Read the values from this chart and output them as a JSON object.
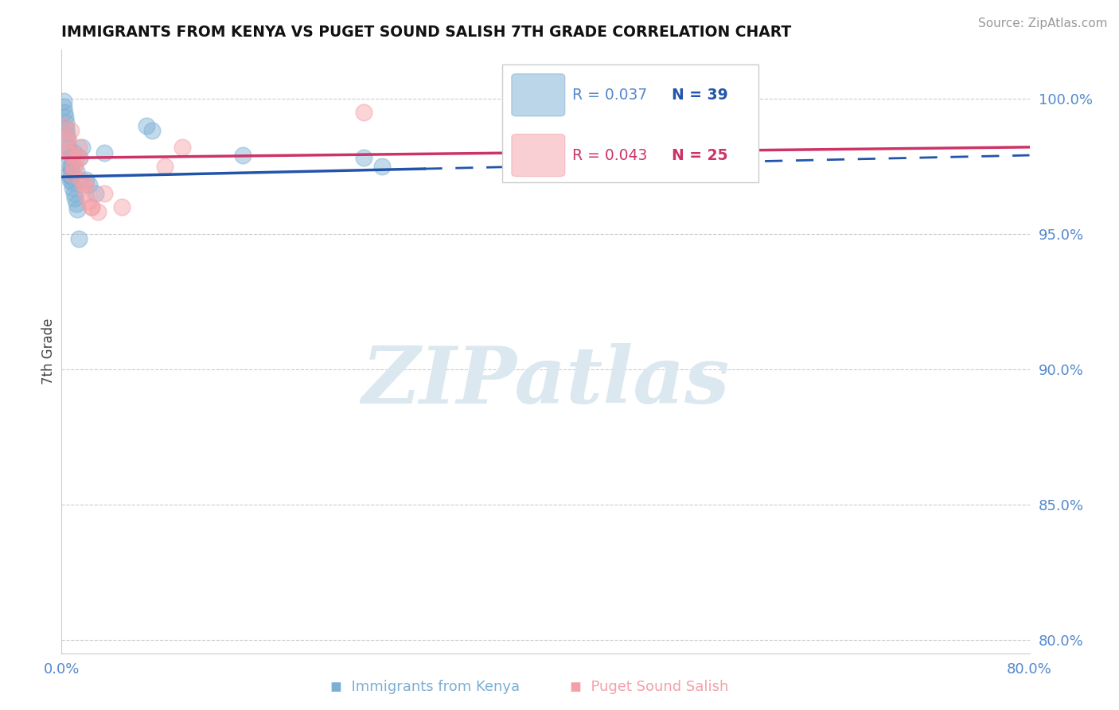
{
  "title": "IMMIGRANTS FROM KENYA VS PUGET SOUND SALISH 7TH GRADE CORRELATION CHART",
  "source": "Source: ZipAtlas.com",
  "ylabel": "7th Grade",
  "xlim": [
    0.0,
    80.0
  ],
  "ylim": [
    79.5,
    101.8
  ],
  "yticks": [
    80.0,
    85.0,
    90.0,
    95.0,
    100.0
  ],
  "ytick_labels": [
    "80.0%",
    "85.0%",
    "90.0%",
    "95.0%",
    "100.0%"
  ],
  "legend_R_kenya": "R = 0.037",
  "legend_N_kenya": "N = 39",
  "legend_R_salish": "R = 0.043",
  "legend_N_salish": "N = 25",
  "color_kenya": "#7BAFD4",
  "color_salish": "#F4A0A8",
  "color_trendline_kenya": "#2255AA",
  "color_trendline_salish": "#CC3366",
  "axis_color": "#5588CC",
  "tick_color": "#5588CC",
  "grid_color": "#CCCCCC",
  "spine_color": "#CCCCCC",
  "kenya_x": [
    0.15,
    0.2,
    0.25,
    0.3,
    0.35,
    0.4,
    0.45,
    0.5,
    0.55,
    0.6,
    0.65,
    0.7,
    0.75,
    0.8,
    0.85,
    0.9,
    1.0,
    1.1,
    1.2,
    1.3,
    1.5,
    1.7,
    2.0,
    2.3,
    2.8,
    3.5,
    7.0,
    7.5,
    25.0,
    26.5,
    42.0,
    43.5,
    15.0,
    0.6,
    0.7,
    0.8,
    1.0,
    1.2,
    1.4
  ],
  "kenya_y": [
    99.9,
    99.7,
    99.5,
    99.3,
    99.1,
    98.9,
    98.7,
    98.5,
    98.2,
    98.0,
    97.8,
    97.5,
    97.3,
    97.1,
    96.9,
    96.7,
    96.5,
    96.3,
    96.1,
    95.9,
    97.8,
    98.2,
    97.0,
    96.8,
    96.5,
    98.0,
    99.0,
    98.8,
    97.8,
    97.5,
    99.3,
    99.1,
    97.9,
    97.2,
    97.0,
    97.5,
    98.0,
    97.3,
    94.8
  ],
  "salish_x": [
    0.2,
    0.4,
    0.6,
    0.8,
    1.0,
    1.2,
    1.4,
    1.6,
    1.8,
    2.0,
    2.2,
    2.5,
    3.0,
    3.5,
    5.0,
    8.5,
    10.0,
    25.0,
    1.0,
    1.5,
    2.0,
    2.5,
    0.5,
    0.7,
    0.9
  ],
  "salish_y": [
    99.0,
    98.5,
    98.0,
    98.8,
    97.5,
    97.8,
    98.2,
    97.0,
    96.8,
    96.5,
    96.2,
    96.0,
    95.8,
    96.5,
    96.0,
    97.5,
    98.2,
    99.5,
    97.5,
    97.8,
    96.8,
    96.0,
    98.5,
    98.0,
    97.2
  ],
  "trend_kenya_y0": 97.1,
  "trend_kenya_y1": 97.9,
  "trend_salish_y0": 97.8,
  "trend_salish_y1": 98.2,
  "solid_end_x": 30.0,
  "watermark_text": "ZIPatlas",
  "watermark_color": "#DCE8F0"
}
